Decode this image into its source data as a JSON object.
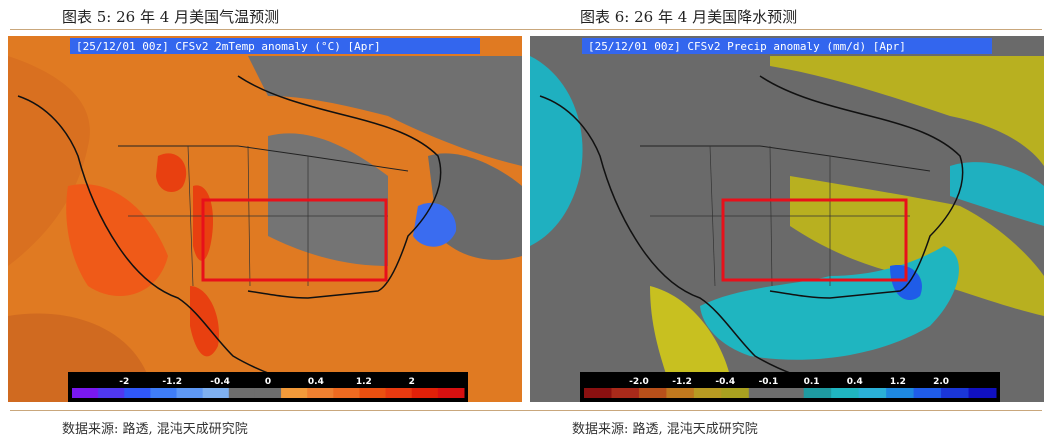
{
  "charts": [
    {
      "figure_title": "图表 5:  26  年  4  月美国气温预测",
      "map_header": "[25/12/01 00z] CFSv2 2mTemp anomaly (°C) [Apr]",
      "source": "数据来源: 路透, 混沌天成研究院",
      "colors": {
        "header_bg": "#3366ee",
        "header_text": "#ffffff",
        "base": "#e07a22",
        "neutral": "#6f6f6f",
        "highlight_box": "#e8101a"
      },
      "legend": {
        "colors": [
          "#7a18f0",
          "#5038f0",
          "#3058f8",
          "#3f7df7",
          "#5e98f5",
          "#7fb0f0",
          "#6d6d6d",
          "#6d6d6d",
          "#f29a3a",
          "#ef8030",
          "#ee6a20",
          "#ea5010",
          "#e83a10",
          "#e02008",
          "#d81010"
        ],
        "tick_labels": [
          "-2",
          "-1.2",
          "-0.4",
          "0",
          "0.4",
          "1.2",
          "2"
        ]
      }
    },
    {
      "figure_title": "图表 6:  26  年  4  月美国降水预测",
      "map_header": "[25/12/01 00z] CFSv2 Precip anomaly (mm/d) [Apr]",
      "source": "数据来源: 路透, 混沌天成研究院",
      "colors": {
        "header_bg": "#3366ee",
        "header_text": "#ffffff",
        "base": "#6a6a6a",
        "neutral": "#6a6a6a",
        "highlight_box": "#e8101a"
      },
      "legend": {
        "colors": [
          "#8a1010",
          "#a82a1a",
          "#b8501a",
          "#c0781e",
          "#b89a22",
          "#a8a020",
          "#6d6d6d",
          "#6d6d6d",
          "#1e9aa0",
          "#1fb5c0",
          "#2ab0d8",
          "#1e88e0",
          "#1f5ce8",
          "#1a36d8",
          "#1010c0"
        ],
        "tick_labels": [
          "-2.0",
          "-1.2",
          "-0.4",
          "-0.1",
          "0.1",
          "0.4",
          "1.2",
          "2.0"
        ]
      }
    }
  ]
}
